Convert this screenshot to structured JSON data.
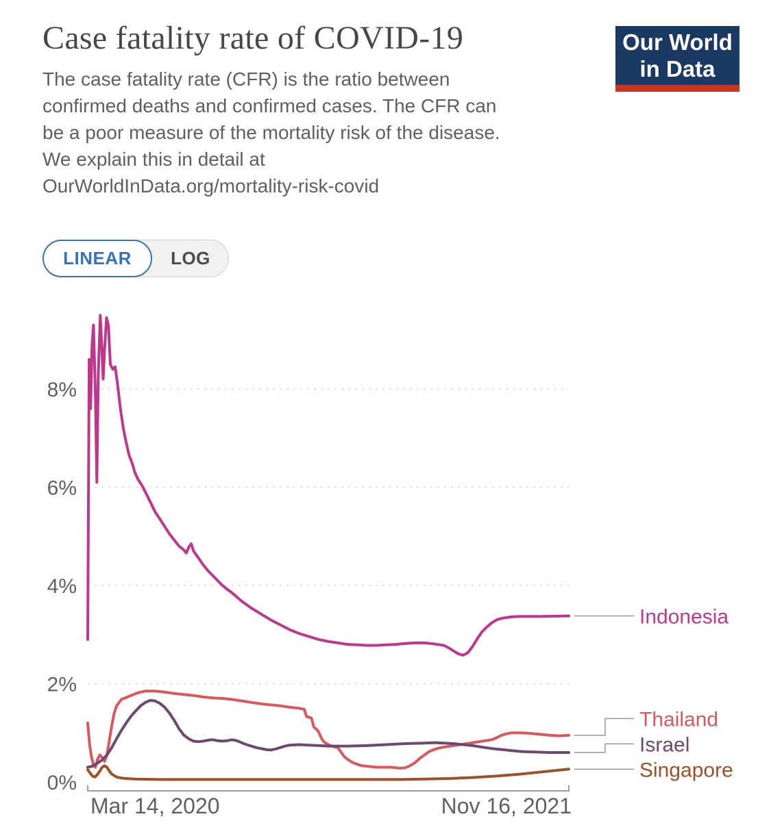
{
  "header": {
    "title": "Case fatality rate of COVID-19",
    "subtitle": "The case fatality rate (CFR) is the ratio between confirmed deaths and confirmed cases. The CFR can be a poor measure of the mortality risk of the disease. We explain this in detail at OurWorldInData.org/mortality-risk-covid"
  },
  "logo": {
    "line1": "Our World",
    "line2": "in Data",
    "bg_color": "#1A3A63",
    "accent_color": "#C9351E",
    "text_color": "#FFFFFF"
  },
  "scale_toggle": {
    "options": [
      {
        "label": "LINEAR",
        "selected": true
      },
      {
        "label": "LOG",
        "selected": false
      }
    ],
    "selected_color": "#3573BF"
  },
  "chart_data": {
    "type": "line",
    "title": "Case fatality rate of COVID-19",
    "unit": "%",
    "x_axis": {
      "start_label": "Mar 14, 2020",
      "end_label": "Nov 16, 2021"
    },
    "y_axis": {
      "ticks": [
        0,
        2,
        4,
        6,
        8
      ],
      "tick_suffix": "%",
      "range": [
        0,
        9.6
      ]
    },
    "grid": true,
    "legend_position": "right-end-labels",
    "style": {
      "grid_color": "#D5D5D5",
      "axis_text_color": "#606060",
      "bracket_color": "#9E9E9E",
      "connector_color": "#999999"
    },
    "series": [
      {
        "name": "Indonesia",
        "color": "#C0368D",
        "points": [
          [
            0,
            2.9
          ],
          [
            0.003,
            8.6
          ],
          [
            0.006,
            7.6
          ],
          [
            0.009,
            8.9
          ],
          [
            0.012,
            9.3
          ],
          [
            0.016,
            7.9
          ],
          [
            0.019,
            6.1
          ],
          [
            0.022,
            8.3
          ],
          [
            0.026,
            9.5
          ],
          [
            0.029,
            8.9
          ],
          [
            0.032,
            8.2
          ],
          [
            0.035,
            8.8
          ],
          [
            0.039,
            9.45
          ],
          [
            0.043,
            9.3
          ],
          [
            0.047,
            8.5
          ],
          [
            0.052,
            8.4
          ],
          [
            0.057,
            8.45
          ],
          [
            0.062,
            8.1
          ],
          [
            0.068,
            7.6
          ],
          [
            0.074,
            7.2
          ],
          [
            0.08,
            6.9
          ],
          [
            0.086,
            6.65
          ],
          [
            0.092,
            6.5
          ],
          [
            0.098,
            6.3
          ],
          [
            0.105,
            6.15
          ],
          [
            0.112,
            6.05
          ],
          [
            0.12,
            5.9
          ],
          [
            0.13,
            5.7
          ],
          [
            0.14,
            5.5
          ],
          [
            0.15,
            5.35
          ],
          [
            0.16,
            5.2
          ],
          [
            0.17,
            5.05
          ],
          [
            0.18,
            4.92
          ],
          [
            0.19,
            4.8
          ],
          [
            0.2,
            4.72
          ],
          [
            0.205,
            4.66
          ],
          [
            0.21,
            4.78
          ],
          [
            0.215,
            4.85
          ],
          [
            0.22,
            4.7
          ],
          [
            0.23,
            4.56
          ],
          [
            0.24,
            4.42
          ],
          [
            0.25,
            4.3
          ],
          [
            0.26,
            4.2
          ],
          [
            0.27,
            4.1
          ],
          [
            0.28,
            4.0
          ],
          [
            0.29,
            3.92
          ],
          [
            0.3,
            3.85
          ],
          [
            0.32,
            3.68
          ],
          [
            0.34,
            3.54
          ],
          [
            0.36,
            3.42
          ],
          [
            0.38,
            3.3
          ],
          [
            0.4,
            3.2
          ],
          [
            0.42,
            3.1
          ],
          [
            0.44,
            3.02
          ],
          [
            0.46,
            2.96
          ],
          [
            0.48,
            2.9
          ],
          [
            0.5,
            2.86
          ],
          [
            0.52,
            2.83
          ],
          [
            0.54,
            2.8
          ],
          [
            0.56,
            2.79
          ],
          [
            0.58,
            2.78
          ],
          [
            0.6,
            2.78
          ],
          [
            0.62,
            2.79
          ],
          [
            0.64,
            2.8
          ],
          [
            0.66,
            2.82
          ],
          [
            0.68,
            2.83
          ],
          [
            0.7,
            2.83
          ],
          [
            0.72,
            2.81
          ],
          [
            0.74,
            2.78
          ],
          [
            0.75,
            2.73
          ],
          [
            0.76,
            2.67
          ],
          [
            0.77,
            2.61
          ],
          [
            0.78,
            2.58
          ],
          [
            0.79,
            2.63
          ],
          [
            0.8,
            2.76
          ],
          [
            0.81,
            2.92
          ],
          [
            0.82,
            3.06
          ],
          [
            0.83,
            3.16
          ],
          [
            0.84,
            3.24
          ],
          [
            0.85,
            3.3
          ],
          [
            0.86,
            3.33
          ],
          [
            0.88,
            3.36
          ],
          [
            0.9,
            3.37
          ],
          [
            0.94,
            3.37
          ],
          [
            1,
            3.38
          ]
        ]
      },
      {
        "name": "Thailand",
        "color": "#DC575B",
        "points": [
          [
            0,
            1.2
          ],
          [
            0.004,
            0.75
          ],
          [
            0.008,
            0.5
          ],
          [
            0.012,
            0.35
          ],
          [
            0.016,
            0.3
          ],
          [
            0.02,
            0.45
          ],
          [
            0.025,
            0.55
          ],
          [
            0.03,
            0.5
          ],
          [
            0.035,
            0.42
          ],
          [
            0.04,
            0.55
          ],
          [
            0.045,
            0.85
          ],
          [
            0.05,
            1.15
          ],
          [
            0.055,
            1.4
          ],
          [
            0.06,
            1.55
          ],
          [
            0.07,
            1.68
          ],
          [
            0.08,
            1.72
          ],
          [
            0.09,
            1.76
          ],
          [
            0.1,
            1.8
          ],
          [
            0.11,
            1.83
          ],
          [
            0.12,
            1.85
          ],
          [
            0.14,
            1.85
          ],
          [
            0.16,
            1.83
          ],
          [
            0.18,
            1.8
          ],
          [
            0.2,
            1.78
          ],
          [
            0.22,
            1.76
          ],
          [
            0.24,
            1.73
          ],
          [
            0.26,
            1.71
          ],
          [
            0.28,
            1.7
          ],
          [
            0.3,
            1.68
          ],
          [
            0.32,
            1.65
          ],
          [
            0.34,
            1.62
          ],
          [
            0.36,
            1.59
          ],
          [
            0.38,
            1.57
          ],
          [
            0.4,
            1.55
          ],
          [
            0.42,
            1.52
          ],
          [
            0.44,
            1.5
          ],
          [
            0.45,
            1.48
          ],
          [
            0.455,
            1.33
          ],
          [
            0.465,
            1.3
          ],
          [
            0.47,
            1.12
          ],
          [
            0.478,
            1.05
          ],
          [
            0.483,
            0.95
          ],
          [
            0.488,
            0.85
          ],
          [
            0.493,
            0.8
          ],
          [
            0.5,
            0.76
          ],
          [
            0.51,
            0.72
          ],
          [
            0.52,
            0.7
          ],
          [
            0.527,
            0.6
          ],
          [
            0.533,
            0.52
          ],
          [
            0.54,
            0.46
          ],
          [
            0.55,
            0.4
          ],
          [
            0.56,
            0.36
          ],
          [
            0.57,
            0.33
          ],
          [
            0.58,
            0.32
          ],
          [
            0.6,
            0.3
          ],
          [
            0.63,
            0.3
          ],
          [
            0.65,
            0.28
          ],
          [
            0.66,
            0.29
          ],
          [
            0.67,
            0.33
          ],
          [
            0.68,
            0.39
          ],
          [
            0.69,
            0.48
          ],
          [
            0.7,
            0.55
          ],
          [
            0.71,
            0.62
          ],
          [
            0.72,
            0.66
          ],
          [
            0.73,
            0.69
          ],
          [
            0.74,
            0.71
          ],
          [
            0.76,
            0.74
          ],
          [
            0.78,
            0.77
          ],
          [
            0.8,
            0.8
          ],
          [
            0.82,
            0.83
          ],
          [
            0.84,
            0.86
          ],
          [
            0.85,
            0.9
          ],
          [
            0.86,
            0.95
          ],
          [
            0.87,
            0.98
          ],
          [
            0.88,
            1.0
          ],
          [
            0.9,
            1.0
          ],
          [
            0.92,
            0.99
          ],
          [
            0.94,
            0.97
          ],
          [
            0.96,
            0.95
          ],
          [
            0.98,
            0.94
          ],
          [
            1,
            0.95
          ]
        ]
      },
      {
        "name": "Israel",
        "color": "#6E4871",
        "points": [
          [
            0,
            0.3
          ],
          [
            0.01,
            0.32
          ],
          [
            0.02,
            0.38
          ],
          [
            0.03,
            0.45
          ],
          [
            0.04,
            0.55
          ],
          [
            0.05,
            0.7
          ],
          [
            0.06,
            0.88
          ],
          [
            0.07,
            1.05
          ],
          [
            0.08,
            1.2
          ],
          [
            0.09,
            1.34
          ],
          [
            0.1,
            1.45
          ],
          [
            0.11,
            1.55
          ],
          [
            0.12,
            1.62
          ],
          [
            0.13,
            1.66
          ],
          [
            0.14,
            1.65
          ],
          [
            0.15,
            1.6
          ],
          [
            0.16,
            1.52
          ],
          [
            0.17,
            1.4
          ],
          [
            0.18,
            1.25
          ],
          [
            0.19,
            1.08
          ],
          [
            0.2,
            0.95
          ],
          [
            0.21,
            0.88
          ],
          [
            0.22,
            0.83
          ],
          [
            0.23,
            0.82
          ],
          [
            0.24,
            0.83
          ],
          [
            0.25,
            0.85
          ],
          [
            0.26,
            0.86
          ],
          [
            0.27,
            0.84
          ],
          [
            0.28,
            0.83
          ],
          [
            0.29,
            0.84
          ],
          [
            0.3,
            0.86
          ],
          [
            0.31,
            0.84
          ],
          [
            0.32,
            0.8
          ],
          [
            0.33,
            0.76
          ],
          [
            0.34,
            0.73
          ],
          [
            0.35,
            0.7
          ],
          [
            0.36,
            0.68
          ],
          [
            0.37,
            0.66
          ],
          [
            0.38,
            0.65
          ],
          [
            0.39,
            0.67
          ],
          [
            0.4,
            0.7
          ],
          [
            0.41,
            0.73
          ],
          [
            0.42,
            0.75
          ],
          [
            0.44,
            0.76
          ],
          [
            0.46,
            0.75
          ],
          [
            0.48,
            0.74
          ],
          [
            0.5,
            0.73
          ],
          [
            0.54,
            0.73
          ],
          [
            0.58,
            0.74
          ],
          [
            0.62,
            0.76
          ],
          [
            0.66,
            0.78
          ],
          [
            0.7,
            0.79
          ],
          [
            0.72,
            0.8
          ],
          [
            0.74,
            0.79
          ],
          [
            0.76,
            0.78
          ],
          [
            0.78,
            0.76
          ],
          [
            0.8,
            0.74
          ],
          [
            0.82,
            0.71
          ],
          [
            0.84,
            0.68
          ],
          [
            0.86,
            0.66
          ],
          [
            0.88,
            0.64
          ],
          [
            0.9,
            0.62
          ],
          [
            0.93,
            0.61
          ],
          [
            0.96,
            0.6
          ],
          [
            1,
            0.6
          ]
        ]
      },
      {
        "name": "Singapore",
        "color": "#9E5125",
        "points": [
          [
            0,
            0.25
          ],
          [
            0.005,
            0.18
          ],
          [
            0.01,
            0.12
          ],
          [
            0.015,
            0.1
          ],
          [
            0.02,
            0.15
          ],
          [
            0.025,
            0.22
          ],
          [
            0.03,
            0.3
          ],
          [
            0.035,
            0.33
          ],
          [
            0.04,
            0.3
          ],
          [
            0.045,
            0.22
          ],
          [
            0.05,
            0.16
          ],
          [
            0.06,
            0.1
          ],
          [
            0.07,
            0.08
          ],
          [
            0.08,
            0.07
          ],
          [
            0.1,
            0.06
          ],
          [
            0.15,
            0.05
          ],
          [
            0.2,
            0.05
          ],
          [
            0.3,
            0.05
          ],
          [
            0.4,
            0.05
          ],
          [
            0.5,
            0.05
          ],
          [
            0.6,
            0.05
          ],
          [
            0.65,
            0.05
          ],
          [
            0.7,
            0.06
          ],
          [
            0.75,
            0.07
          ],
          [
            0.8,
            0.09
          ],
          [
            0.85,
            0.12
          ],
          [
            0.9,
            0.16
          ],
          [
            0.95,
            0.21
          ],
          [
            1,
            0.26
          ]
        ]
      }
    ]
  }
}
